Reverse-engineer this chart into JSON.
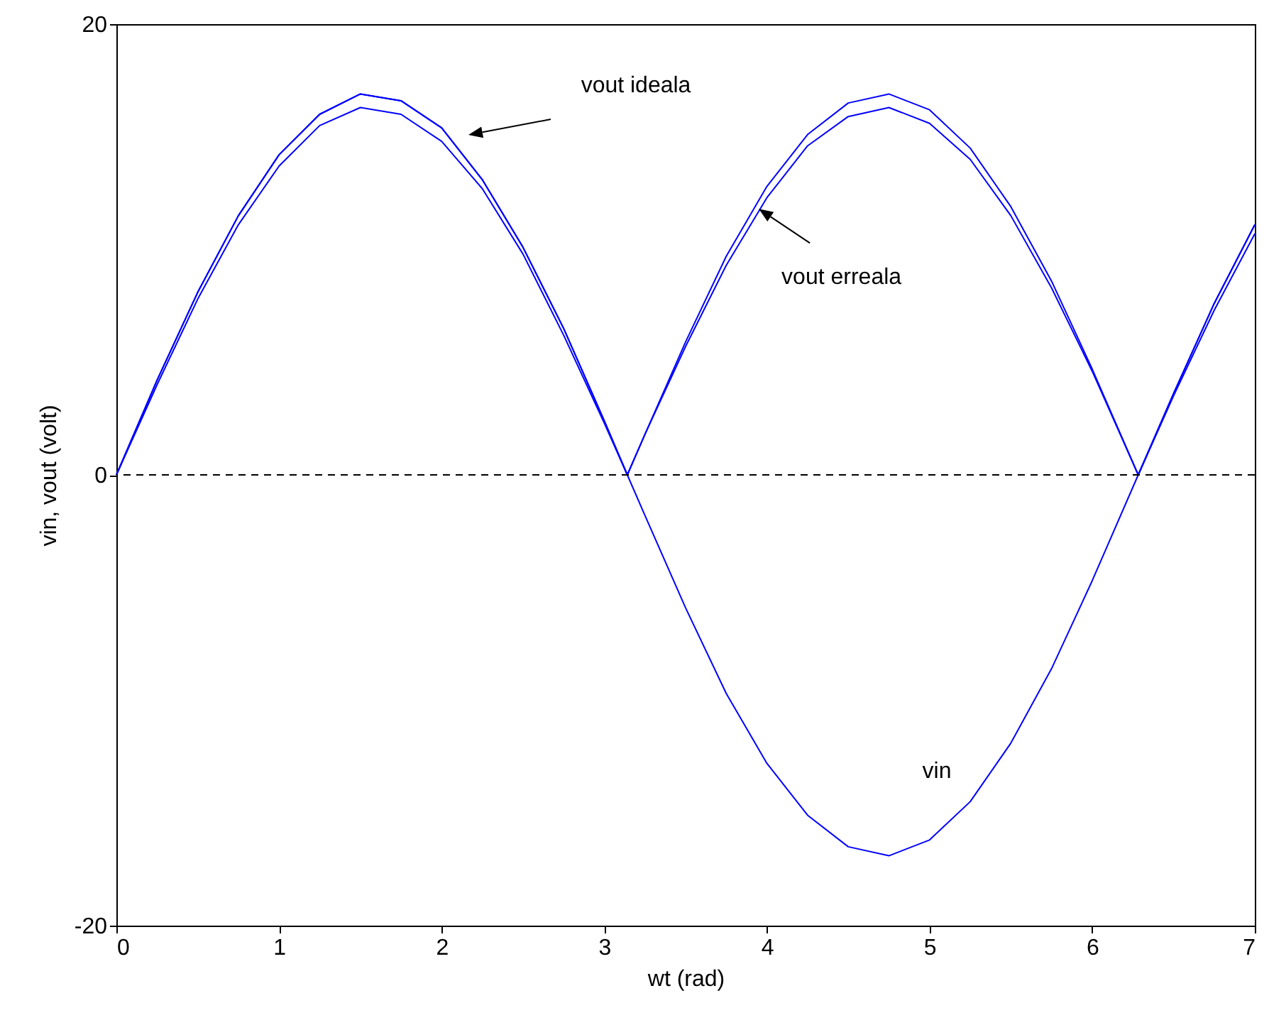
{
  "chart_data": {
    "type": "line",
    "xlabel": "wt (rad)",
    "ylabel": "vin, vout (volt)",
    "x": [
      0,
      0.25,
      0.5,
      0.75,
      1,
      1.25,
      1.5,
      1.75,
      2,
      2.25,
      2.5,
      2.75,
      3,
      3.1416,
      3.25,
      3.5,
      3.75,
      4,
      4.25,
      4.5,
      4.75,
      5,
      5.25,
      5.5,
      5.75,
      6,
      6.2832,
      6.5,
      6.75,
      7
    ],
    "series": [
      {
        "color": "#0000ff",
        "values": [
          0,
          4.2,
          8.1,
          11.5,
          14.2,
          16.0,
          16.9,
          16.6,
          15.4,
          13.1,
          10.1,
          6.5,
          2.4,
          0,
          -1.8,
          -5.9,
          -9.7,
          -12.8,
          -15.1,
          -16.5,
          -16.9,
          -16.2,
          -14.5,
          -11.9,
          -8.6,
          -4.7,
          0,
          3.6,
          7.6,
          11.1
        ]
      },
      {
        "color": "#0000ff",
        "values": [
          0,
          4.2,
          8.1,
          11.5,
          14.2,
          16.0,
          16.9,
          16.6,
          15.4,
          13.1,
          10.1,
          6.5,
          2.4,
          0,
          1.8,
          5.9,
          9.7,
          12.8,
          15.1,
          16.5,
          16.9,
          16.2,
          14.5,
          11.9,
          8.6,
          4.7,
          0,
          3.6,
          7.6,
          11.1
        ]
      },
      {
        "color": "#0000ff",
        "values": [
          0,
          4.0,
          7.8,
          11.1,
          13.7,
          15.5,
          16.3,
          16.0,
          14.8,
          12.7,
          9.8,
          6.2,
          2.3,
          0,
          1.8,
          5.7,
          9.3,
          12.3,
          14.6,
          15.9,
          16.3,
          15.6,
          14.0,
          11.5,
          8.3,
          4.6,
          0,
          3.5,
          7.3,
          10.7
        ]
      }
    ],
    "xlim": [
      0,
      7
    ],
    "ylim": [
      -20,
      20
    ],
    "xticks": [
      0,
      1,
      2,
      3,
      4,
      5,
      6,
      7
    ],
    "yticks": [
      -20,
      0,
      20
    ],
    "grid": false,
    "marker": "none",
    "line_style": "solid",
    "ref_lines": [
      {
        "axis": "y",
        "value": 0,
        "color": "#000000",
        "line_style": "dashed"
      }
    ],
    "annotations": [
      "vout ideala",
      {
        "text": "vout erreala",
        "x": 3.95,
        "y": 11.8
      },
      "vin"
    ]
  }
}
